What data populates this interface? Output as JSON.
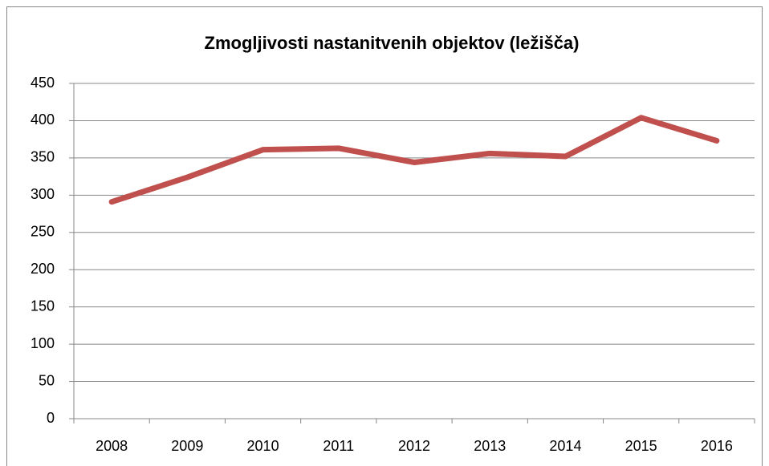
{
  "chart_data": {
    "type": "line",
    "title": "Zmogljivosti nastanitvenih objektov (ležišča)",
    "categories": [
      "2008",
      "2009",
      "2010",
      "2011",
      "2012",
      "2013",
      "2014",
      "2015",
      "2016"
    ],
    "values": [
      291,
      324,
      361,
      363,
      344,
      356,
      352,
      404,
      373
    ],
    "color": "#c0504d",
    "ylim": [
      0,
      450
    ],
    "yticks": [
      0,
      50,
      100,
      150,
      200,
      250,
      300,
      350,
      400,
      450
    ],
    "grid": true
  }
}
